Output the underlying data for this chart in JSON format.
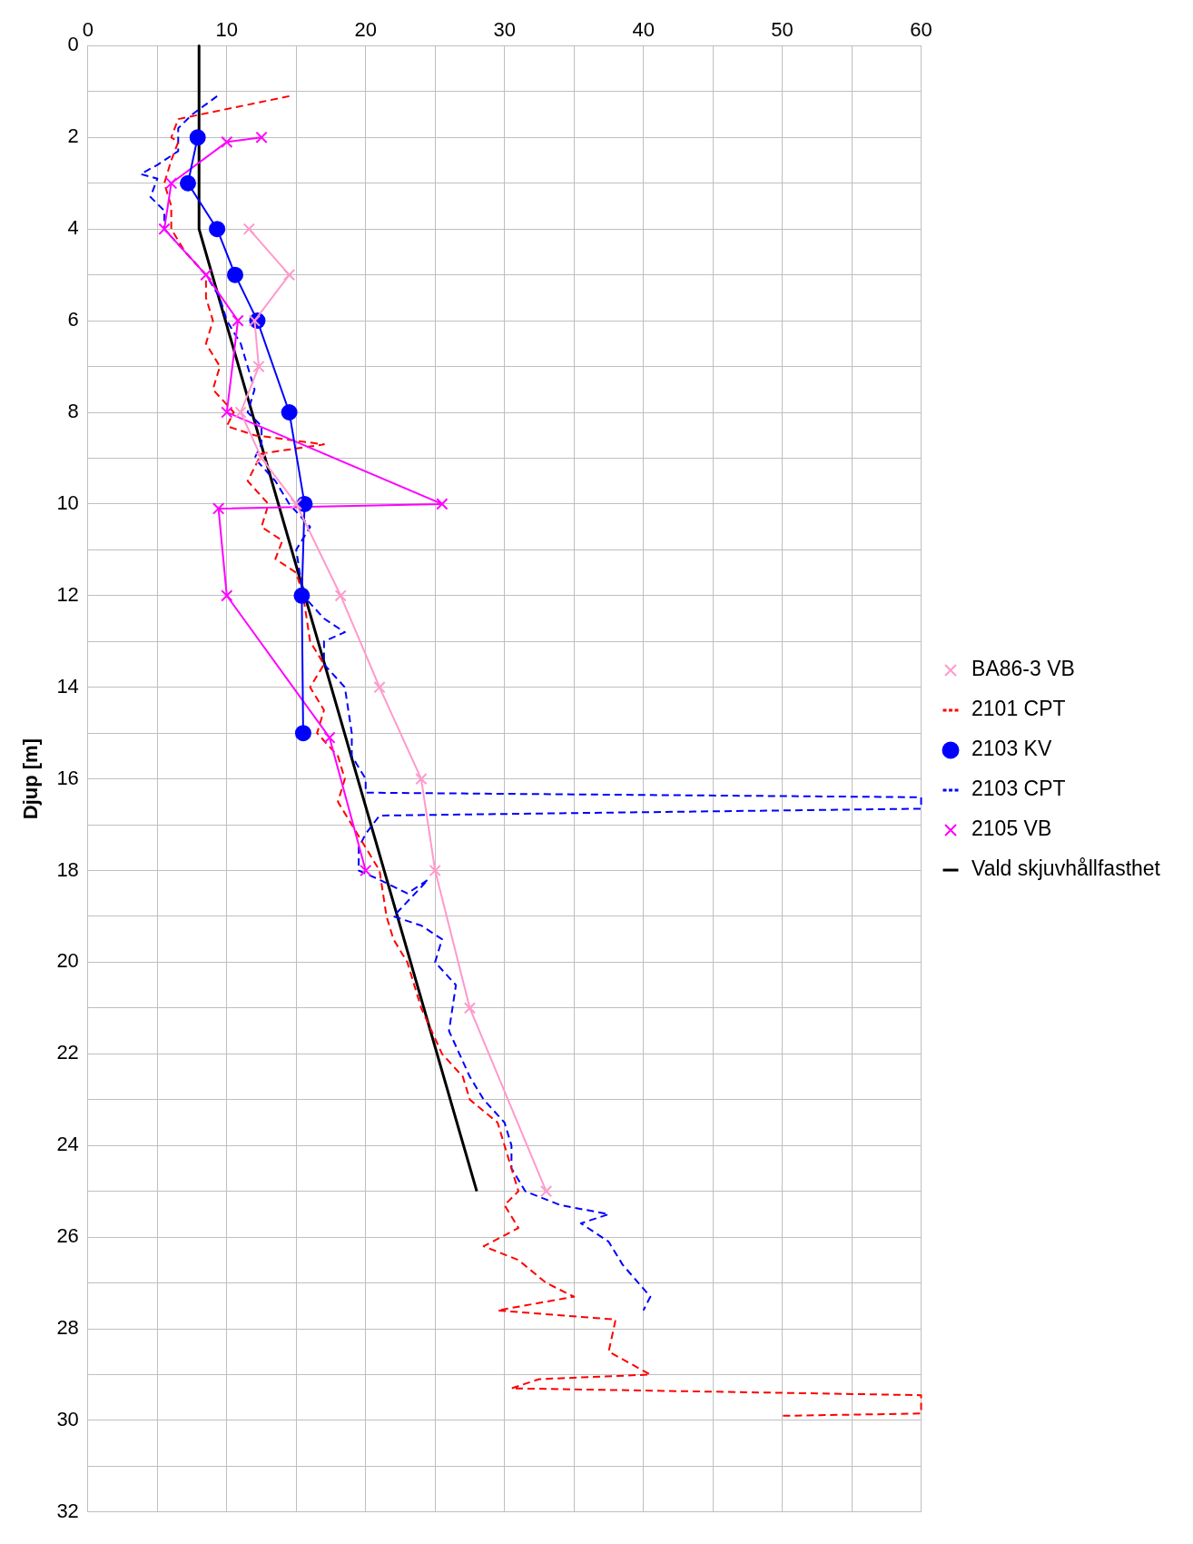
{
  "chart_data": {
    "type": "line",
    "ylabel": "Djup [m]",
    "xlim": [
      0,
      60
    ],
    "ylim": [
      32,
      0
    ],
    "xticks": [
      0,
      {
        "value": 5,
        "label": null
      },
      10,
      {
        "value": 15,
        "label": null
      },
      20,
      {
        "value": 25,
        "label": null
      },
      30,
      {
        "value": 35,
        "label": null
      },
      40,
      {
        "value": 45,
        "label": null
      },
      50,
      {
        "value": 55,
        "label": null
      },
      60
    ],
    "yticks": [
      0,
      {
        "value": 1,
        "label": null
      },
      2,
      {
        "value": 3,
        "label": null
      },
      4,
      {
        "value": 5,
        "label": null
      },
      6,
      {
        "value": 7,
        "label": null
      },
      8,
      {
        "value": 9,
        "label": null
      },
      10,
      {
        "value": 11,
        "label": null
      },
      12,
      {
        "value": 13,
        "label": null
      },
      14,
      {
        "value": 15,
        "label": null
      },
      16,
      {
        "value": 17,
        "label": null
      },
      18,
      {
        "value": 19,
        "label": null
      },
      20,
      {
        "value": 21,
        "label": null
      },
      22,
      {
        "value": 23,
        "label": null
      },
      24,
      {
        "value": 25,
        "label": null
      },
      26,
      {
        "value": 27,
        "label": null
      },
      28,
      {
        "value": 29,
        "label": null
      },
      30,
      {
        "value": 31,
        "label": null
      },
      32
    ],
    "grid": true,
    "legend": "right",
    "series": [
      {
        "name": "BA86-3 VB",
        "color": "#ff99cc",
        "marker": "cross",
        "line_style": "solid",
        "x": [
          11.6,
          14.5,
          12,
          12.3,
          11,
          12.5,
          15,
          18.2,
          21,
          24,
          25,
          27.5,
          33
        ],
        "values": [
          4,
          5,
          6,
          7,
          8,
          9,
          10,
          12,
          14,
          16,
          18,
          21,
          25
        ]
      },
      {
        "name": "2101 CPT",
        "color": "#ff0000",
        "marker": "none",
        "line_style": "dashed",
        "x": [
          14.5,
          6.5,
          6,
          6.5,
          6,
          5.5,
          6,
          6,
          7,
          8.5,
          8.5,
          9,
          8.5,
          9.5,
          9,
          10.5,
          10,
          12,
          17,
          12.5,
          12,
          11.5,
          13,
          12.5,
          14,
          13.5,
          15,
          15.5,
          16,
          17,
          16,
          17,
          16.5,
          18,
          18.5,
          18,
          19,
          20,
          21,
          21.5,
          22,
          23,
          23.5,
          24,
          25.5,
          27,
          27.5,
          29.5,
          30,
          30.5,
          31,
          30,
          31,
          28.5,
          31,
          33,
          35,
          29.5,
          38,
          37.5,
          40.5,
          32.5,
          30.5,
          60,
          60,
          50
        ],
        "values": [
          1.1,
          1.6,
          2,
          2.1,
          2.5,
          3,
          3.5,
          4,
          4.5,
          5,
          5.5,
          6,
          6.5,
          7,
          7.5,
          8,
          8.3,
          8.5,
          8.7,
          8.9,
          9.2,
          9.5,
          10,
          10.5,
          10.8,
          11.2,
          11.5,
          12,
          13,
          13.5,
          14,
          14.5,
          15,
          15.5,
          16,
          16.5,
          17,
          17.5,
          18,
          19,
          19.5,
          20,
          20.5,
          21,
          22,
          22.5,
          23,
          23.5,
          24,
          24.5,
          25,
          25.3,
          25.8,
          26.2,
          26.5,
          27,
          27.3,
          27.6,
          27.8,
          28.5,
          29,
          29.1,
          29.3,
          29.45,
          29.85,
          29.9
        ]
      },
      {
        "name": "2103 KV",
        "color": "#0000ff",
        "marker": "circle",
        "line_style": "solid",
        "x": [
          7.9,
          7.2,
          9.3,
          10.6,
          12.2,
          14.5,
          15.6,
          15.4,
          15.5
        ],
        "values": [
          2,
          3,
          4,
          5,
          6,
          8,
          10,
          12,
          15
        ]
      },
      {
        "name": "2103 CPT",
        "color": "#0000ff",
        "marker": "none",
        "line_style": "dashed",
        "x": [
          9.3,
          7.5,
          6.5,
          6.5,
          5,
          3.8,
          5,
          4.5,
          5.5,
          5.5,
          7,
          8.5,
          9.5,
          10,
          11,
          11.5,
          12,
          11.5,
          12.5,
          12.5,
          12,
          13.5,
          14.5,
          16,
          15,
          15.5,
          17,
          18.5,
          17,
          17,
          18.5,
          19,
          19,
          20,
          20,
          60,
          60,
          21,
          20,
          19.5,
          19.5,
          21,
          23,
          24.5,
          22,
          24,
          25.5,
          25,
          26.5,
          26,
          27.5,
          28.5,
          30,
          30.5,
          30.5,
          31.5,
          34,
          37.5,
          35.5,
          37.5,
          38.5,
          40.5,
          40
        ],
        "values": [
          1.1,
          1.5,
          1.8,
          2.3,
          2.6,
          2.8,
          2.9,
          3.3,
          3.6,
          4,
          4.5,
          5,
          5.5,
          6,
          6.5,
          7,
          7.5,
          8,
          8.3,
          8.7,
          9,
          9.5,
          10,
          10.5,
          11,
          12,
          12.5,
          12.8,
          13,
          13.5,
          14,
          15,
          15.5,
          16,
          16.3,
          16.4,
          16.65,
          16.8,
          17.2,
          17.5,
          18,
          18.2,
          18.5,
          18.2,
          19,
          19.2,
          19.5,
          20,
          20.5,
          21.5,
          22.5,
          23,
          23.5,
          24,
          24.5,
          25,
          25.3,
          25.5,
          25.7,
          26.1,
          26.6,
          27.3,
          27.6
        ]
      },
      {
        "name": "2105 VB",
        "color": "#ff00ff",
        "marker": "cross",
        "line_style": "solid",
        "x": [
          12.5,
          10,
          6,
          5.5,
          8.5,
          10.8,
          10,
          25.5,
          9.4,
          10,
          17.4,
          20
        ],
        "values": [
          2,
          2.1,
          3,
          4,
          5,
          6,
          8,
          10,
          10.1,
          12,
          15.1,
          18
        ]
      },
      {
        "name": "Vald skjuvhållfasthet",
        "color": "#000000",
        "marker": "none",
        "line_style": "solid",
        "x": [
          8,
          8,
          28
        ],
        "values": [
          0,
          4,
          25
        ]
      }
    ]
  }
}
